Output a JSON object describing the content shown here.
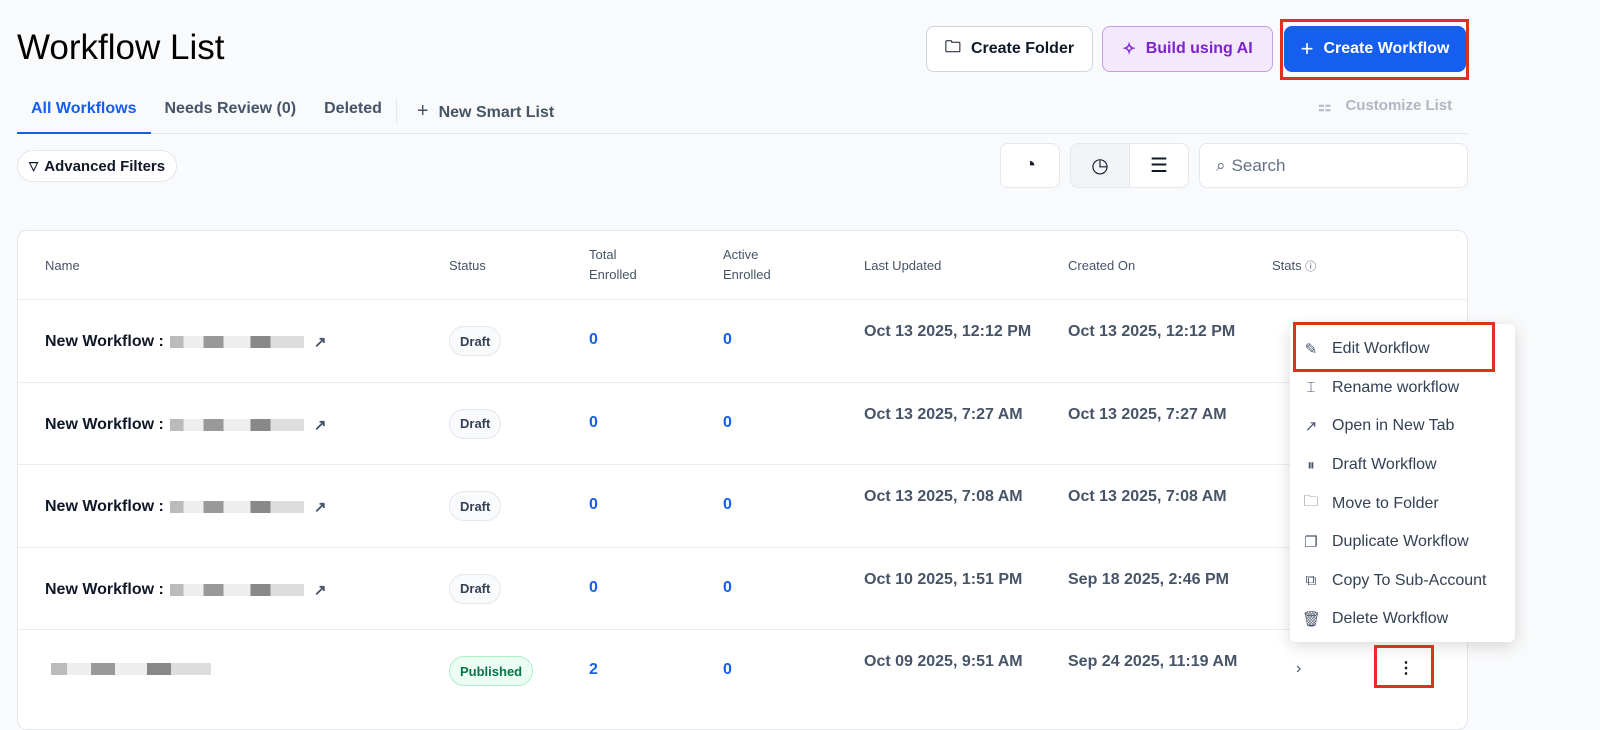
{
  "page": {
    "title": "Workflow List"
  },
  "header": {
    "create_folder": "Create Folder",
    "build_ai": "Build using AI",
    "create_workflow": "Create Workflow",
    "customize_list": "Customize List"
  },
  "tabs": [
    {
      "label": "All Workflows",
      "active": true
    },
    {
      "label": "Needs Review (0)"
    },
    {
      "label": "Deleted"
    },
    {
      "label": "New Smart List"
    }
  ],
  "toolbar": {
    "advanced_filters": "Advanced Filters",
    "search_placeholder": "Search"
  },
  "table": {
    "columns": [
      "Name",
      "Status",
      "Total Enrolled",
      "Active Enrolled",
      "Last Updated",
      "Created On",
      "Stats"
    ],
    "rows": [
      {
        "name": "New Workflow :",
        "status": "Draft",
        "total": "0",
        "active": "0",
        "updated": "Oct 13 2025, 12:12 PM",
        "created": "Oct 13 2025, 12:12 PM"
      },
      {
        "name": "New Workflow :",
        "status": "Draft",
        "total": "0",
        "active": "0",
        "updated": "Oct 13 2025, 7:27 AM",
        "created": "Oct 13 2025, 7:27 AM"
      },
      {
        "name": "New Workflow :",
        "status": "Draft",
        "total": "0",
        "active": "0",
        "updated": "Oct 13 2025, 7:08 AM",
        "created": "Oct 13 2025, 7:08 AM"
      },
      {
        "name": "New Workflow :",
        "status": "Draft",
        "total": "0",
        "active": "0",
        "updated": "Oct 10 2025, 1:51 PM",
        "created": "Sep 18 2025, 2:46 PM"
      },
      {
        "name": "",
        "status": "Published",
        "total": "2",
        "active": "0",
        "updated": "Oct 09 2025, 9:51 AM",
        "created": "Sep 24 2025, 11:19 AM"
      }
    ]
  },
  "menu": {
    "items": [
      {
        "label": "Edit Workflow",
        "icon": "pencil"
      },
      {
        "label": "Rename workflow",
        "icon": "rename"
      },
      {
        "label": "Open in New Tab",
        "icon": "external-link"
      },
      {
        "label": "Draft Workflow",
        "icon": "pause-circle"
      },
      {
        "label": "Move to Folder",
        "icon": "folder-check"
      },
      {
        "label": "Duplicate Workflow",
        "icon": "duplicate"
      },
      {
        "label": "Copy To Sub-Account",
        "icon": "copy"
      },
      {
        "label": "Delete Workflow",
        "icon": "trash"
      }
    ]
  },
  "colors": {
    "primary": "#155eef",
    "ai": "#7e22ce",
    "highlight": "#e0301e"
  }
}
